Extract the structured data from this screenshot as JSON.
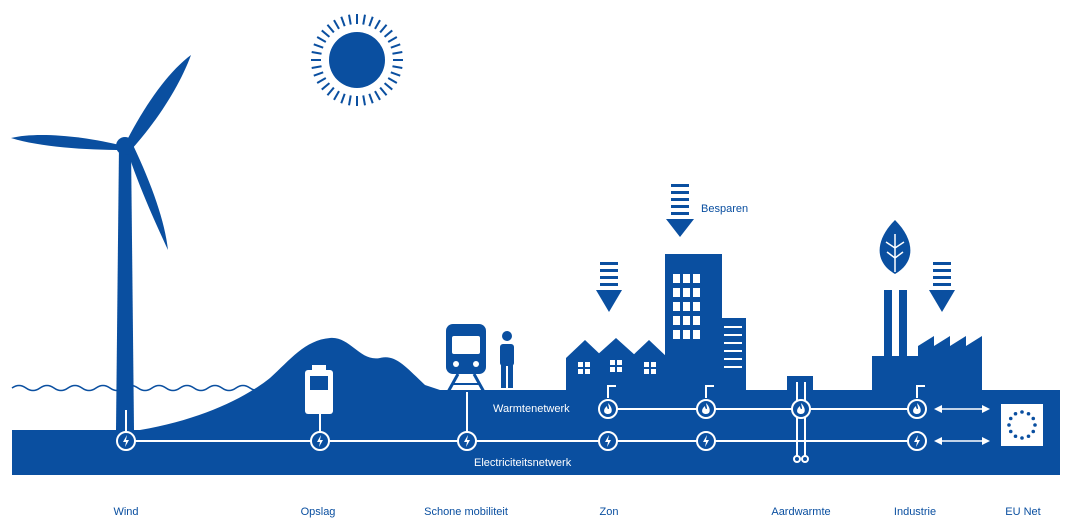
{
  "colors": {
    "primary": "#0a4fa0",
    "background": "#ffffff",
    "line": "#ffffff"
  },
  "labels": {
    "besparen": "Besparen",
    "warmtenetwerk": "Warmtenetwerk",
    "electriciteitsnetwerk": "Electriciteitsnetwerk"
  },
  "categories": [
    "Wind",
    "Opslag",
    "Schone mobiliteit",
    "Zon",
    "Aardwarmte",
    "Industrie",
    "EU Net"
  ],
  "icons": [
    "sun-icon",
    "wind-turbine-icon",
    "battery-icon",
    "train-icon",
    "person-icon",
    "leaf-icon",
    "flame-icon",
    "lightning-icon",
    "eu-flag-icon",
    "down-arrow-icon",
    "double-arrow-icon"
  ]
}
